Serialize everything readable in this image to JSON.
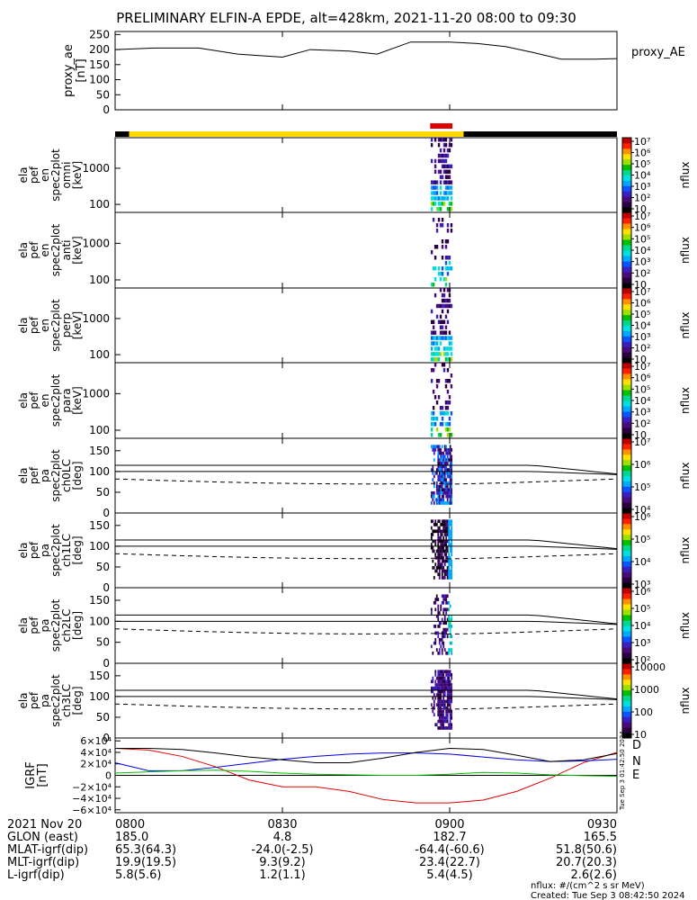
{
  "title": "PRELIMINARY ELFIN-A EPDE, alt=428km, 2021-11-20 08:00 to 09:30",
  "chart_data": [
    {
      "type": "line",
      "panel": "proxy_ae",
      "ylabel": [
        "proxy_ae",
        "[nT]"
      ],
      "legend": "proxy_AE",
      "ylim": [
        0,
        260
      ],
      "yticks": [
        "0",
        "50",
        "100",
        "150",
        "200",
        "250"
      ],
      "x_minutes": [
        0,
        7,
        15,
        22,
        30,
        35,
        42,
        47,
        53,
        56,
        60,
        65,
        70,
        75,
        80,
        86,
        90
      ],
      "values": [
        200,
        205,
        205,
        185,
        175,
        200,
        195,
        185,
        225,
        225,
        225,
        220,
        210,
        190,
        168,
        168,
        170
      ]
    },
    {
      "type": "heatmap",
      "panel": "energy_omni",
      "ylabel": [
        "ela",
        "pef",
        "en",
        "spec2plot",
        "omni",
        "[keV]"
      ],
      "yscale": "log",
      "ylim_kev": [
        60,
        7000
      ],
      "yticks": [
        "100",
        "1000"
      ],
      "colorbar": {
        "label": "nflux",
        "ticks": [
          "10",
          "10²",
          "10³",
          "10⁴",
          "10⁵",
          "10⁶",
          "10⁷"
        ]
      }
    },
    {
      "type": "heatmap",
      "panel": "energy_anti",
      "ylabel": [
        "ela",
        "pef",
        "en",
        "spec2plot",
        "anti",
        "[keV]"
      ],
      "yscale": "log",
      "ylim_kev": [
        60,
        7000
      ],
      "yticks": [
        "100",
        "1000"
      ],
      "colorbar": {
        "label": "nflux",
        "ticks": [
          "10",
          "10²",
          "10³",
          "10⁴",
          "10⁵",
          "10⁶",
          "10⁷"
        ]
      }
    },
    {
      "type": "heatmap",
      "panel": "energy_perp",
      "ylabel": [
        "ela",
        "pef",
        "en",
        "spec2plot",
        "perp",
        "[keV]"
      ],
      "yscale": "log",
      "ylim_kev": [
        60,
        7000
      ],
      "yticks": [
        "100",
        "1000"
      ],
      "colorbar": {
        "label": "nflux",
        "ticks": [
          "10",
          "10²",
          "10³",
          "10⁴",
          "10⁵",
          "10⁶",
          "10⁷"
        ]
      }
    },
    {
      "type": "heatmap",
      "panel": "energy_para",
      "ylabel": [
        "ela",
        "pef",
        "en",
        "spec2plot",
        "para",
        "[keV]"
      ],
      "yscale": "log",
      "ylim_kev": [
        60,
        7000
      ],
      "yticks": [
        "100",
        "1000"
      ],
      "colorbar": {
        "label": "nflux",
        "ticks": [
          "10",
          "10²",
          "10³",
          "10⁴",
          "10⁵",
          "10⁶",
          "10⁷"
        ]
      }
    },
    {
      "type": "heatmap",
      "panel": "pa_ch0LC",
      "ylabel": [
        "ela",
        "pef",
        "pa",
        "spec2plot",
        "ch0LC",
        "[deg]"
      ],
      "ylim": [
        0,
        180
      ],
      "yticks": [
        "0",
        "50",
        "100",
        "150"
      ],
      "colorbar": {
        "label": "nflux",
        "ticks": [
          "10⁴",
          "10⁵",
          "10⁶",
          "10⁷"
        ]
      }
    },
    {
      "type": "heatmap",
      "panel": "pa_ch1LC",
      "ylabel": [
        "ela",
        "pef",
        "pa",
        "spec2plot",
        "ch1LC",
        "[deg]"
      ],
      "ylim": [
        0,
        180
      ],
      "yticks": [
        "0",
        "50",
        "100",
        "150"
      ],
      "colorbar": {
        "label": "nflux",
        "ticks": [
          "10³",
          "10⁴",
          "10⁵",
          "10⁶"
        ]
      }
    },
    {
      "type": "heatmap",
      "panel": "pa_ch2LC",
      "ylabel": [
        "ela",
        "pef",
        "pa",
        "spec2plot",
        "ch2LC",
        "[deg]"
      ],
      "ylim": [
        0,
        180
      ],
      "yticks": [
        "0",
        "50",
        "100",
        "150"
      ],
      "colorbar": {
        "label": "nflux",
        "ticks": [
          "10²",
          "10³",
          "10⁴",
          "10⁵",
          "10⁶"
        ]
      }
    },
    {
      "type": "heatmap",
      "panel": "pa_ch3LC",
      "ylabel": [
        "ela",
        "pef",
        "pa",
        "spec2plot",
        "ch3LC",
        "[deg]"
      ],
      "ylim": [
        0,
        180
      ],
      "yticks": [
        "0",
        "50",
        "100",
        "150"
      ],
      "colorbar": {
        "label": "nflux",
        "ticks": [
          "10",
          "100",
          "1000",
          "10000"
        ]
      }
    },
    {
      "type": "line",
      "panel": "igrf",
      "ylabel": [
        "IGRF",
        "[nT]"
      ],
      "ylim": [
        -65000,
        65000
      ],
      "yticks": [
        "−6×10⁴",
        "−4×10⁴",
        "−2×10⁴",
        "0",
        "2×10⁴",
        "4×10⁴",
        "6×10⁴"
      ],
      "x_minutes": [
        0,
        6,
        12,
        18,
        24,
        30,
        36,
        42,
        48,
        54,
        60,
        66,
        72,
        78,
        84,
        90
      ],
      "series": [
        {
          "name": "D",
          "color": "#e00000",
          "values": [
            47000,
            44000,
            33000,
            15000,
            -8000,
            -20000,
            -20000,
            -28000,
            -42000,
            -48000,
            -48000,
            -43000,
            -28000,
            -5000,
            22000,
            40000
          ]
        },
        {
          "name": "N",
          "color": "#0000e0",
          "values": [
            22000,
            8000,
            8000,
            14000,
            21000,
            28000,
            33000,
            37000,
            39000,
            39000,
            37000,
            32000,
            27000,
            24000,
            25000,
            28000
          ]
        },
        {
          "name": "E",
          "color": "#00c000",
          "values": [
            4000,
            6000,
            8000,
            9000,
            7000,
            4000,
            2000,
            1000,
            0,
            0,
            2000,
            5000,
            4000,
            1000,
            -500,
            -1500
          ]
        },
        {
          "name": "",
          "color": "#000000",
          "values": [
            47000,
            47000,
            45000,
            39000,
            32000,
            27000,
            22000,
            22000,
            30000,
            40000,
            47000,
            45000,
            35000,
            24000,
            27000,
            38000
          ]
        }
      ],
      "timestamp": "Tue Sep 3 01:42:50 2024"
    }
  ],
  "status_bar": {
    "yellow_start_min": 2.5,
    "yellow_end_min": 62.5,
    "red_start_min": 56.5,
    "red_end_min": 60.5
  },
  "ephemeris": {
    "rows": [
      {
        "label": "2021 Nov 20",
        "values": [
          "0800",
          "0830",
          "0900",
          "0930"
        ]
      },
      {
        "label": "GLON (east)",
        "values": [
          "185.0",
          "4.8",
          "182.7",
          "165.5"
        ]
      },
      {
        "label": "MLAT-igrf(dip)",
        "values": [
          "65.3(64.3)",
          "-24.0(-2.5)",
          "-64.4(-60.6)",
          "51.8(50.6)"
        ]
      },
      {
        "label": "MLT-igrf(dip)",
        "values": [
          "19.9(19.5)",
          "9.3(9.2)",
          "23.4(22.7)",
          "20.7(20.3)"
        ]
      },
      {
        "label": "L-igrf(dip)",
        "values": [
          "5.8(5.6)",
          "1.2(1.1)",
          "5.4(4.5)",
          "2.6(2.6)"
        ]
      }
    ]
  },
  "footer": {
    "units": "nflux: #/(cm^2 s sr MeV)",
    "created": "Created: Tue Sep  3 08:42:50 2024"
  }
}
